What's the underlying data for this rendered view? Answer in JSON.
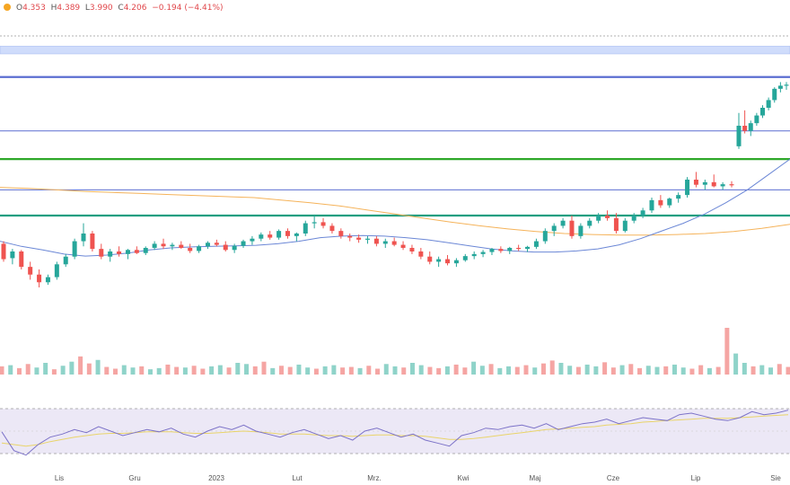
{
  "header": {
    "open_label": "O",
    "open": "4.353",
    "high_label": "H",
    "high": "4.389",
    "low_label": "L",
    "low": "3.990",
    "close_label": "C",
    "close": "4.206",
    "change": "−0.194",
    "change_pct": "(−4.41%)"
  },
  "colors": {
    "up": "#26a69a",
    "down": "#ef5350",
    "hline_blue": "#5b6ed1",
    "hline_green": "#2ea82a",
    "hline_teal": "#1f9e80",
    "band_fill": "#cfdcfb",
    "ma_fast": "#6b87d6",
    "ma_slow": "#f5b35a",
    "rsi_line": "#7c72c8",
    "rsi_signal": "#e9d46a",
    "rsi_band": "#ece8f6"
  },
  "chart_data": {
    "type": "candlestick",
    "x_ticks": [
      "Lis",
      "Gru",
      "2023",
      "Lut",
      "Mrz.",
      "Kwi",
      "Maj",
      "Cze",
      "Lip",
      "Sie"
    ],
    "price_range": [
      2.0,
      8.3
    ],
    "horizontal_levels": [
      {
        "value": 7.15,
        "color": "hline_blue",
        "style": "thick"
      },
      {
        "value": 6.1,
        "color": "hline_blue",
        "style": "thin"
      },
      {
        "value": 5.55,
        "color": "hline_green",
        "style": "thick"
      },
      {
        "value": 4.95,
        "color": "hline_blue",
        "style": "thin"
      },
      {
        "value": 4.45,
        "color": "hline_teal",
        "style": "thick"
      }
    ],
    "zone": {
      "from": 7.6,
      "to": 7.75
    },
    "dotted_level": 7.95,
    "candles": [
      [
        3.9,
        3.95,
        3.55,
        3.6
      ],
      [
        3.62,
        3.8,
        3.5,
        3.75
      ],
      [
        3.75,
        3.78,
        3.4,
        3.45
      ],
      [
        3.45,
        3.55,
        3.2,
        3.3
      ],
      [
        3.3,
        3.4,
        3.05,
        3.15
      ],
      [
        3.15,
        3.3,
        3.1,
        3.25
      ],
      [
        3.25,
        3.55,
        3.2,
        3.5
      ],
      [
        3.5,
        3.7,
        3.45,
        3.65
      ],
      [
        3.65,
        4.0,
        3.6,
        3.95
      ],
      [
        3.95,
        4.3,
        3.85,
        4.1
      ],
      [
        4.1,
        4.15,
        3.75,
        3.8
      ],
      [
        3.8,
        3.9,
        3.6,
        3.65
      ],
      [
        3.65,
        3.8,
        3.55,
        3.75
      ],
      [
        3.75,
        3.85,
        3.65,
        3.7
      ],
      [
        3.7,
        3.8,
        3.6,
        3.78
      ],
      [
        3.78,
        3.85,
        3.7,
        3.72
      ],
      [
        3.72,
        3.85,
        3.68,
        3.82
      ],
      [
        3.82,
        3.95,
        3.78,
        3.9
      ],
      [
        3.9,
        4.0,
        3.8,
        3.85
      ],
      [
        3.85,
        3.92,
        3.78,
        3.88
      ],
      [
        3.88,
        3.95,
        3.8,
        3.82
      ],
      [
        3.82,
        3.9,
        3.72,
        3.76
      ],
      [
        3.76,
        3.88,
        3.72,
        3.85
      ],
      [
        3.85,
        3.95,
        3.8,
        3.92
      ],
      [
        3.92,
        3.98,
        3.85,
        3.88
      ],
      [
        3.88,
        3.95,
        3.75,
        3.78
      ],
      [
        3.78,
        3.9,
        3.72,
        3.86
      ],
      [
        3.86,
        3.98,
        3.82,
        3.95
      ],
      [
        3.95,
        4.05,
        3.88,
        4.0
      ],
      [
        4.0,
        4.12,
        3.95,
        4.08
      ],
      [
        4.08,
        4.15,
        3.98,
        4.02
      ],
      [
        4.02,
        4.18,
        3.98,
        4.15
      ],
      [
        4.15,
        4.2,
        4.0,
        4.05
      ],
      [
        4.05,
        4.12,
        3.95,
        4.1
      ],
      [
        4.1,
        4.35,
        4.05,
        4.3
      ],
      [
        4.3,
        4.45,
        4.2,
        4.32
      ],
      [
        4.32,
        4.4,
        4.2,
        4.25
      ],
      [
        4.25,
        4.3,
        4.1,
        4.15
      ],
      [
        4.15,
        4.2,
        4.0,
        4.05
      ],
      [
        4.05,
        4.1,
        3.95,
        4.02
      ],
      [
        4.02,
        4.08,
        3.92,
        3.98
      ],
      [
        3.98,
        4.05,
        3.9,
        4.0
      ],
      [
        4.0,
        4.05,
        3.85,
        3.9
      ],
      [
        3.9,
        4.0,
        3.82,
        3.95
      ],
      [
        3.95,
        4.02,
        3.85,
        3.88
      ],
      [
        3.88,
        3.95,
        3.78,
        3.82
      ],
      [
        3.82,
        3.88,
        3.7,
        3.75
      ],
      [
        3.75,
        3.82,
        3.6,
        3.65
      ],
      [
        3.65,
        3.75,
        3.5,
        3.55
      ],
      [
        3.55,
        3.65,
        3.45,
        3.6
      ],
      [
        3.6,
        3.68,
        3.48,
        3.52
      ],
      [
        3.52,
        3.62,
        3.45,
        3.58
      ],
      [
        3.58,
        3.7,
        3.55,
        3.66
      ],
      [
        3.66,
        3.75,
        3.6,
        3.7
      ],
      [
        3.7,
        3.78,
        3.64,
        3.74
      ],
      [
        3.74,
        3.82,
        3.68,
        3.8
      ],
      [
        3.8,
        3.85,
        3.72,
        3.76
      ],
      [
        3.76,
        3.84,
        3.7,
        3.82
      ],
      [
        3.82,
        3.88,
        3.76,
        3.8
      ],
      [
        3.8,
        3.86,
        3.74,
        3.84
      ],
      [
        3.84,
        4.0,
        3.8,
        3.95
      ],
      [
        3.95,
        4.2,
        3.9,
        4.15
      ],
      [
        4.15,
        4.3,
        4.05,
        4.25
      ],
      [
        4.25,
        4.4,
        4.2,
        4.35
      ],
      [
        4.35,
        4.45,
        4.0,
        4.05
      ],
      [
        4.05,
        4.3,
        4.0,
        4.25
      ],
      [
        4.25,
        4.4,
        4.2,
        4.35
      ],
      [
        4.35,
        4.5,
        4.3,
        4.45
      ],
      [
        4.45,
        4.55,
        4.35,
        4.4
      ],
      [
        4.4,
        4.5,
        4.1,
        4.15
      ],
      [
        4.15,
        4.4,
        4.12,
        4.35
      ],
      [
        4.35,
        4.5,
        4.3,
        4.45
      ],
      [
        4.45,
        4.6,
        4.4,
        4.55
      ],
      [
        4.55,
        4.8,
        4.5,
        4.75
      ],
      [
        4.75,
        4.85,
        4.6,
        4.65
      ],
      [
        4.65,
        4.8,
        4.6,
        4.78
      ],
      [
        4.78,
        4.9,
        4.7,
        4.85
      ],
      [
        4.85,
        5.2,
        4.8,
        5.15
      ],
      [
        5.15,
        5.3,
        5.0,
        5.05
      ],
      [
        5.05,
        5.15,
        4.95,
        5.1
      ],
      [
        5.1,
        5.25,
        5.0,
        5.02
      ],
      [
        5.02,
        5.1,
        4.95,
        5.06
      ],
      [
        5.06,
        5.12,
        5.0,
        5.04
      ],
      [
        5.8,
        6.45,
        5.75,
        6.2
      ],
      [
        6.2,
        6.5,
        6.05,
        6.1
      ],
      [
        6.1,
        6.3,
        6.0,
        6.25
      ],
      [
        6.25,
        6.45,
        6.2,
        6.4
      ],
      [
        6.4,
        6.6,
        6.35,
        6.55
      ],
      [
        6.55,
        6.75,
        6.5,
        6.7
      ],
      [
        6.7,
        6.95,
        6.65,
        6.92
      ],
      [
        6.92,
        7.05,
        6.85,
        6.98
      ],
      [
        6.98,
        7.05,
        6.9,
        7.0
      ]
    ],
    "ma_fast": [
      3.95,
      3.85,
      3.78,
      3.7,
      3.66,
      3.68,
      3.72,
      3.78,
      3.82,
      3.84,
      3.85,
      3.86,
      3.87,
      3.9,
      3.95,
      4.02,
      4.05,
      4.06,
      4.05,
      4.02,
      3.98,
      3.92,
      3.86,
      3.8,
      3.76,
      3.74,
      3.74,
      3.76,
      3.8,
      3.88,
      4.0,
      4.15,
      4.3,
      4.48,
      4.7,
      4.95,
      5.25,
      5.55
    ],
    "ma_slow": [
      5.0,
      4.98,
      4.95,
      4.92,
      4.9,
      4.88,
      4.86,
      4.84,
      4.82,
      4.8,
      4.75,
      4.7,
      4.64,
      4.56,
      4.48,
      4.4,
      4.32,
      4.25,
      4.19,
      4.14,
      4.1,
      4.08,
      4.07,
      4.07,
      4.08,
      4.1,
      4.14,
      4.2,
      4.28
    ],
    "volume": [
      14,
      16,
      11,
      18,
      12,
      20,
      9,
      15,
      22,
      31,
      19,
      25,
      13,
      10,
      16,
      12,
      14,
      9,
      11,
      17,
      13,
      12,
      15,
      10,
      14,
      16,
      12,
      20,
      18,
      14,
      22,
      11,
      15,
      13,
      17,
      12,
      10,
      14,
      16,
      12,
      13,
      11,
      15,
      10,
      18,
      14,
      12,
      20,
      16,
      13,
      11,
      14,
      17,
      12,
      22,
      15,
      18,
      11,
      14,
      13,
      16,
      12,
      19,
      24,
      20,
      15,
      13,
      17,
      14,
      21,
      12,
      16,
      18,
      11,
      15,
      13,
      14,
      17,
      12,
      10,
      16,
      11,
      13,
      80,
      36,
      20,
      14,
      16,
      12,
      18,
      13
    ],
    "volume_up_ratio": 0.5,
    "rsi": [
      55,
      30,
      24,
      38,
      48,
      52,
      58,
      54,
      62,
      56,
      50,
      54,
      58,
      55,
      60,
      52,
      48,
      56,
      62,
      58,
      64,
      56,
      52,
      48,
      54,
      58,
      52,
      46,
      50,
      44,
      56,
      60,
      54,
      48,
      52,
      44,
      40,
      36,
      50,
      54,
      60,
      58,
      62,
      64,
      60,
      66,
      58,
      62,
      66,
      68,
      72,
      66,
      70,
      74,
      72,
      70,
      78,
      80,
      76,
      72,
      70,
      74,
      82,
      78,
      80,
      84
    ],
    "rsi_signal": [
      40,
      38,
      36,
      38,
      42,
      45,
      48,
      50,
      52,
      53,
      53,
      54,
      55,
      55,
      55,
      54,
      53,
      53,
      54,
      55,
      56,
      55,
      54,
      52,
      52,
      52,
      51,
      50,
      50,
      49,
      50,
      51,
      51,
      50,
      50,
      49,
      47,
      45,
      45,
      46,
      48,
      50,
      52,
      54,
      56,
      58,
      59,
      60,
      61,
      62,
      64,
      65,
      66,
      68,
      69,
      70,
      71,
      72,
      73,
      73,
      73,
      74,
      75,
      76,
      77,
      78
    ]
  }
}
